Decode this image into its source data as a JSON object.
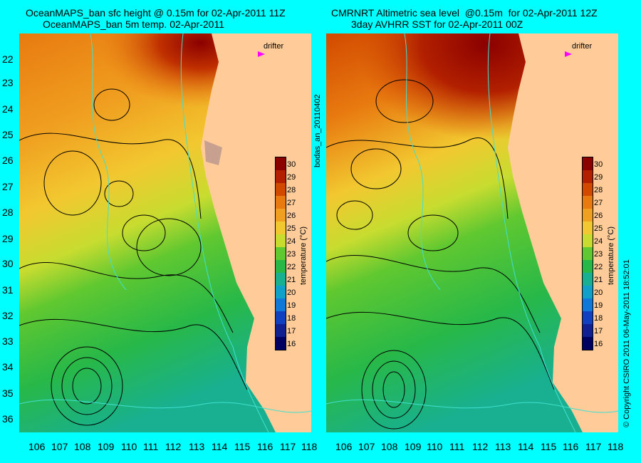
{
  "left_title": {
    "line1": "OceanMAPS_ban sfc height @ 0.15m for 02-Apr-2011 11Z",
    "line2": "OceanMAPS_ban 5m temp. 02-Apr-2011"
  },
  "right_title": {
    "line1": "CMRNRT Altimetric sea level  @0.15m  for 02-Apr-2011 12Z",
    "line2": "3day AVHRR SST for 02-Apr-2011 00Z"
  },
  "y_axis_labels": [
    "22",
    "23",
    "24",
    "25",
    "26",
    "27",
    "28",
    "29",
    "30",
    "31",
    "32",
    "33",
    "34",
    "35",
    "36"
  ],
  "x_axis_labels": [
    "106",
    "107",
    "108",
    "109",
    "110",
    "111",
    "112",
    "113",
    "114",
    "115",
    "116",
    "117",
    "118"
  ],
  "colorbar": {
    "title": "temperature (°C)",
    "ticks": [
      "30",
      "29",
      "28",
      "27",
      "26",
      "25",
      "24",
      "23",
      "22",
      "21",
      "20",
      "19",
      "18",
      "17",
      "16"
    ],
    "colors": [
      "#8B0000",
      "#B22000",
      "#D24A00",
      "#E87A10",
      "#F0A020",
      "#F2C830",
      "#C8DC30",
      "#60C830",
      "#28B848",
      "#18B090",
      "#10A0C8",
      "#1078D8",
      "#1040C0",
      "#102090",
      "#000060"
    ]
  },
  "drifter_label": "drifter",
  "analysis_id": "bodas_an_20110402",
  "copyright": "© Copyright CSIRO 2011   06-May-2011 18:52:01",
  "colors": {
    "background": "#00FFFF",
    "land": "#FFCC99",
    "isobath": "#40E0D0",
    "contour": "#000000",
    "drifter_marker": "#FF00FF"
  }
}
